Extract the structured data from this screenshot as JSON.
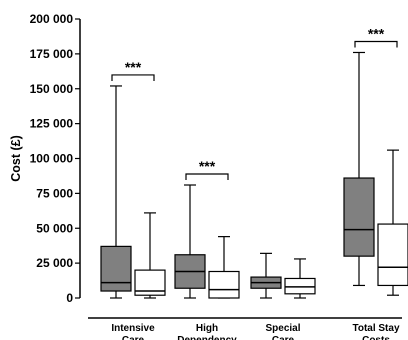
{
  "chart_data": {
    "type": "boxplot",
    "ylabel": "Cost (£)",
    "ylim": [
      0,
      200000
    ],
    "y_ticks": [
      0,
      25000,
      50000,
      75000,
      100000,
      125000,
      150000,
      175000,
      200000
    ],
    "y_tick_labels": [
      "0",
      "25 000",
      "50 000",
      "75 000",
      "100 000",
      "125 000",
      "150 000",
      "175 000",
      "200 000"
    ],
    "categories": [
      {
        "label": [
          "Intensive",
          "Care"
        ],
        "significance": "***",
        "boxes": [
          {
            "fill": "#808080",
            "min": 0,
            "q1": 5000,
            "median": 11000,
            "q3": 37000,
            "max": 152000
          },
          {
            "fill": "#ffffff",
            "min": 0,
            "q1": 2000,
            "median": 5000,
            "q3": 20000,
            "max": 61000
          }
        ]
      },
      {
        "label": [
          "High",
          "Dependency"
        ],
        "significance": "***",
        "boxes": [
          {
            "fill": "#808080",
            "min": 0,
            "q1": 7000,
            "median": 19000,
            "q3": 31000,
            "max": 81000
          },
          {
            "fill": "#ffffff",
            "min": 0,
            "q1": 0,
            "median": 6000,
            "q3": 19000,
            "max": 44000
          }
        ]
      },
      {
        "label": [
          "Special",
          "Care"
        ],
        "significance": "",
        "boxes": [
          {
            "fill": "#808080",
            "min": 0,
            "q1": 7000,
            "median": 11000,
            "q3": 15000,
            "max": 32000
          },
          {
            "fill": "#ffffff",
            "min": 0,
            "q1": 3000,
            "median": 8000,
            "q3": 14000,
            "max": 28000
          }
        ]
      },
      {
        "label": [
          "Total Stay",
          "Costs"
        ],
        "significance": "***",
        "boxes": [
          {
            "fill": "#808080",
            "min": 9000,
            "q1": 30000,
            "median": 49000,
            "q3": 86000,
            "max": 176000
          },
          {
            "fill": "#ffffff",
            "min": 2000,
            "q1": 9000,
            "median": 22000,
            "q3": 53000,
            "max": 106000
          }
        ]
      }
    ]
  }
}
